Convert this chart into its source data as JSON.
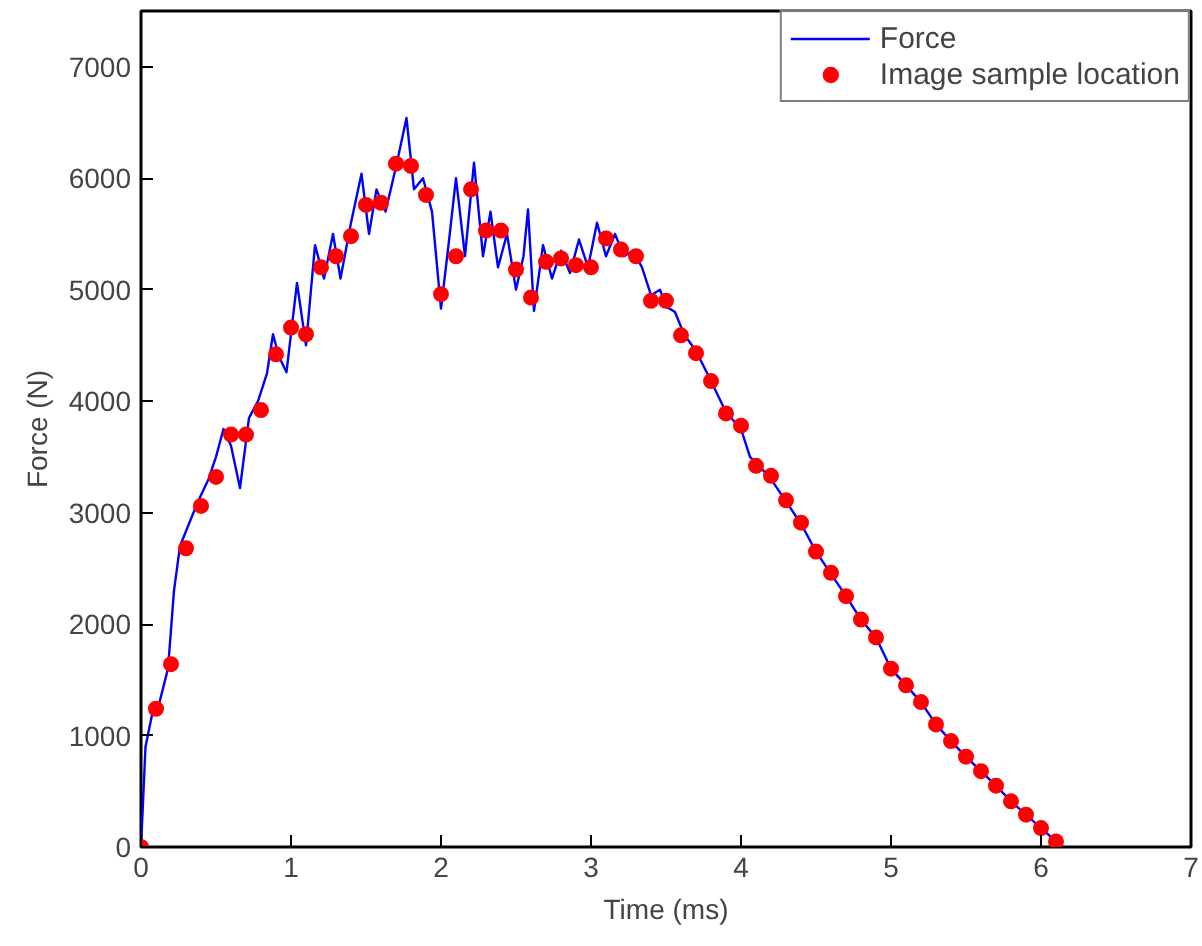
{
  "chart_data": {
    "type": "line",
    "xlabel": "Time (ms)",
    "ylabel": "Force (N)",
    "xlim": [
      0,
      7
    ],
    "ylim": [
      0,
      7500
    ],
    "xticks": [
      0,
      1,
      2,
      3,
      4,
      5,
      6,
      7
    ],
    "yticks": [
      0,
      1000,
      2000,
      3000,
      4000,
      5000,
      6000,
      7000
    ],
    "grid": false,
    "legend": "top right",
    "series": [
      {
        "name": "Force",
        "color": "#0000ff",
        "marker": "none",
        "x": [
          0,
          0.03,
          0.08,
          0.12,
          0.18,
          0.22,
          0.26,
          0.32,
          0.38,
          0.45,
          0.5,
          0.55,
          0.6,
          0.66,
          0.72,
          0.78,
          0.84,
          0.88,
          0.92,
          0.97,
          1.04,
          1.1,
          1.16,
          1.22,
          1.28,
          1.33,
          1.4,
          1.47,
          1.52,
          1.57,
          1.63,
          1.7,
          1.77,
          1.82,
          1.88,
          1.94,
          2.0,
          2.05,
          2.1,
          2.16,
          2.22,
          2.28,
          2.33,
          2.38,
          2.44,
          2.5,
          2.55,
          2.58,
          2.62,
          2.68,
          2.74,
          2.8,
          2.86,
          2.92,
          2.98,
          3.04,
          3.1,
          3.16,
          3.22,
          3.28,
          3.34,
          3.4,
          3.46,
          3.5,
          3.56,
          3.62,
          3.7,
          3.8,
          3.9,
          4.0,
          4.06,
          4.12,
          4.2,
          4.3,
          4.4,
          4.5,
          4.6,
          4.7,
          4.8,
          4.9,
          5.0,
          5.1,
          5.2,
          5.3,
          5.4,
          5.5,
          5.6,
          5.7,
          5.8,
          5.9,
          6.0,
          6.1,
          6.14
        ],
        "values": [
          0,
          900,
          1230,
          1280,
          1600,
          2300,
          2700,
          2900,
          3100,
          3300,
          3500,
          3750,
          3600,
          3220,
          3850,
          4000,
          4250,
          4600,
          4400,
          4260,
          5060,
          4500,
          5400,
          5100,
          5500,
          5100,
          5600,
          6040,
          5500,
          5900,
          5700,
          6100,
          6540,
          5900,
          6000,
          5700,
          4830,
          5400,
          6000,
          5300,
          6140,
          5300,
          5700,
          5200,
          5500,
          5000,
          5300,
          5720,
          4810,
          5400,
          5100,
          5350,
          5150,
          5450,
          5200,
          5600,
          5300,
          5500,
          5300,
          5350,
          5200,
          4950,
          5000,
          4850,
          4800,
          4600,
          4450,
          4180,
          3900,
          3750,
          3500,
          3420,
          3300,
          3100,
          2900,
          2650,
          2450,
          2250,
          2040,
          1880,
          1600,
          1450,
          1300,
          1100,
          950,
          810,
          680,
          550,
          410,
          290,
          170,
          50,
          0
        ]
      },
      {
        "name": "Image sample location",
        "type": "scatter",
        "color": "#ff0000",
        "marker": "circle",
        "x": [
          0,
          0.1,
          0.2,
          0.3,
          0.4,
          0.5,
          0.6,
          0.7,
          0.8,
          0.9,
          1.0,
          1.1,
          1.2,
          1.3,
          1.4,
          1.5,
          1.6,
          1.7,
          1.8,
          1.9,
          2.0,
          2.1,
          2.2,
          2.3,
          2.4,
          2.5,
          2.6,
          2.7,
          2.8,
          2.9,
          3.0,
          3.1,
          3.2,
          3.3,
          3.4,
          3.5,
          3.6,
          3.7,
          3.8,
          3.9,
          4.0,
          4.1,
          4.2,
          4.3,
          4.4,
          4.5,
          4.6,
          4.7,
          4.8,
          4.9,
          5.0,
          5.1,
          5.2,
          5.3,
          5.4,
          5.5,
          5.6,
          5.7,
          5.8,
          5.9,
          6.0,
          6.1
        ],
        "values": [
          0,
          1240,
          1640,
          2680,
          3060,
          3320,
          3700,
          3700,
          3920,
          4420,
          4660,
          4600,
          5200,
          5300,
          5480,
          5760,
          5780,
          6130,
          6110,
          5850,
          4960,
          5300,
          5900,
          5530,
          5530,
          5180,
          4930,
          5250,
          5280,
          5220,
          5200,
          5460,
          5360,
          5300,
          4900,
          4900,
          4590,
          4430,
          4180,
          3890,
          3780,
          3420,
          3330,
          3110,
          2910,
          2650,
          2460,
          2250,
          2040,
          1880,
          1600,
          1450,
          1300,
          1100,
          950,
          810,
          680,
          550,
          410,
          290,
          170,
          50
        ]
      }
    ]
  }
}
